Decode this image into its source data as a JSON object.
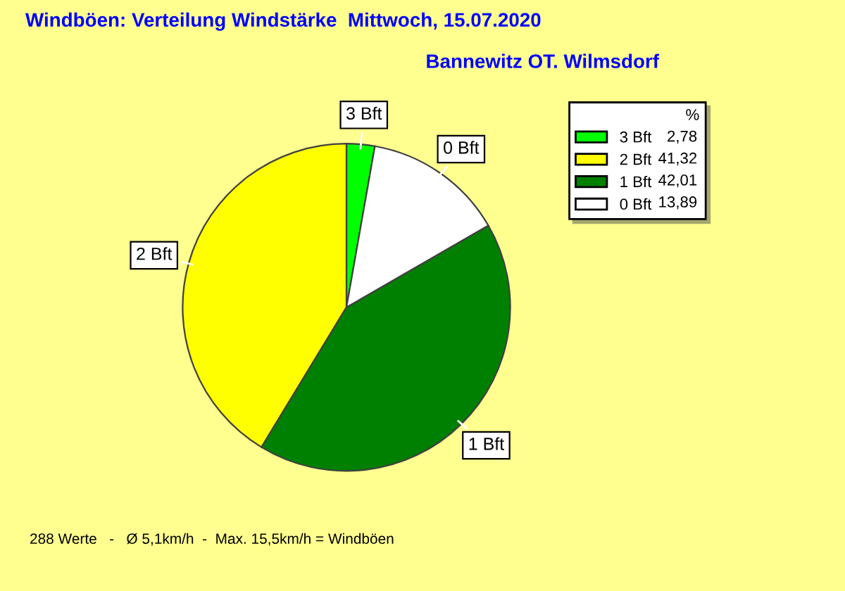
{
  "chart_data": {
    "type": "pie",
    "title": "Windböen: Verteilung Windstärke  Mittwoch, 15.07.2020",
    "subtitle": "Bannewitz OT. Wilmsdorf",
    "categories": [
      "3 Bft",
      "2 Bft",
      "1 Bft",
      "0 Bft"
    ],
    "values": [
      2.78,
      41.32,
      42.01,
      13.89
    ],
    "value_labels": [
      "2,78",
      "41,32",
      "42,01",
      "13,89"
    ],
    "colors": [
      "#00ff00",
      "#ffff00",
      "#008000",
      "#ffffff"
    ],
    "legend": "top right",
    "legend_title": "%",
    "annotations": [
      "288 Werte   -   Ø 5,1km/h  -  Max. 15,5km/h = Windböen"
    ]
  }
}
